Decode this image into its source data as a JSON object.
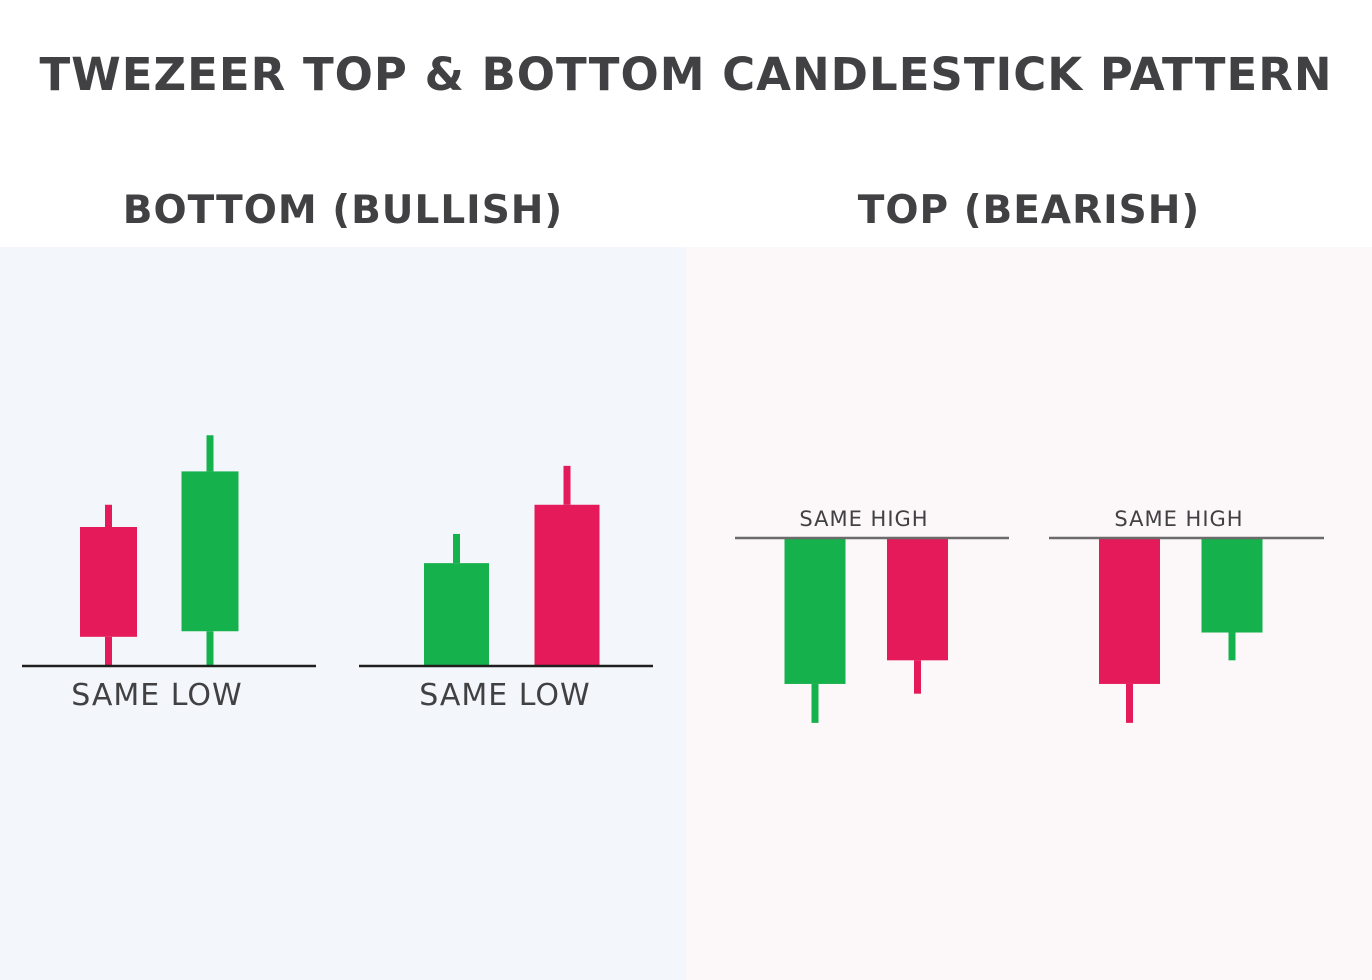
{
  "title": "TWEZEER TOP & BOTTOM CANDLESTICK PATTERN",
  "colors": {
    "text": "#414143",
    "bullish": "#15b14c",
    "bearish": "#e51a5a",
    "line_bottom": "#1f1f1f",
    "line_top": "#6b6b6b",
    "panel_bottom_bg": "#f3f6fb",
    "panel_top_bg": "#fcf8f9"
  },
  "panels": {
    "bottom": {
      "heading": "BOTTOM (BULLISH)",
      "level_label": "SAME LOW",
      "examples": [
        {
          "candles": [
            {
              "color": "bearish",
              "high": 5.8,
              "open": 5.0,
              "close": 1.05,
              "low": 0.0
            },
            {
              "color": "bullish",
              "high": 8.3,
              "open": 1.25,
              "close": 7.0,
              "low": 0.0
            }
          ]
        },
        {
          "candles": [
            {
              "color": "bullish",
              "high": 4.75,
              "open": 0.0,
              "close": 3.7,
              "low": 0.0
            },
            {
              "color": "bearish",
              "high": 7.2,
              "open": 5.8,
              "close": 0.0,
              "low": 0.0
            }
          ]
        }
      ]
    },
    "top": {
      "heading": "TOP (BEARISH)",
      "level_label": "SAME HIGH",
      "examples": [
        {
          "candles": [
            {
              "color": "bullish",
              "high": 10.0,
              "open": 4.75,
              "close": 10.0,
              "low": 3.35
            },
            {
              "color": "bearish",
              "high": 10.0,
              "open": 10.0,
              "close": 5.6,
              "low": 4.4
            }
          ]
        },
        {
          "candles": [
            {
              "color": "bearish",
              "high": 10.0,
              "open": 10.0,
              "close": 4.75,
              "low": 3.35
            },
            {
              "color": "bullish",
              "high": 10.0,
              "open": 6.6,
              "close": 10.0,
              "low": 5.6
            }
          ]
        }
      ]
    }
  }
}
